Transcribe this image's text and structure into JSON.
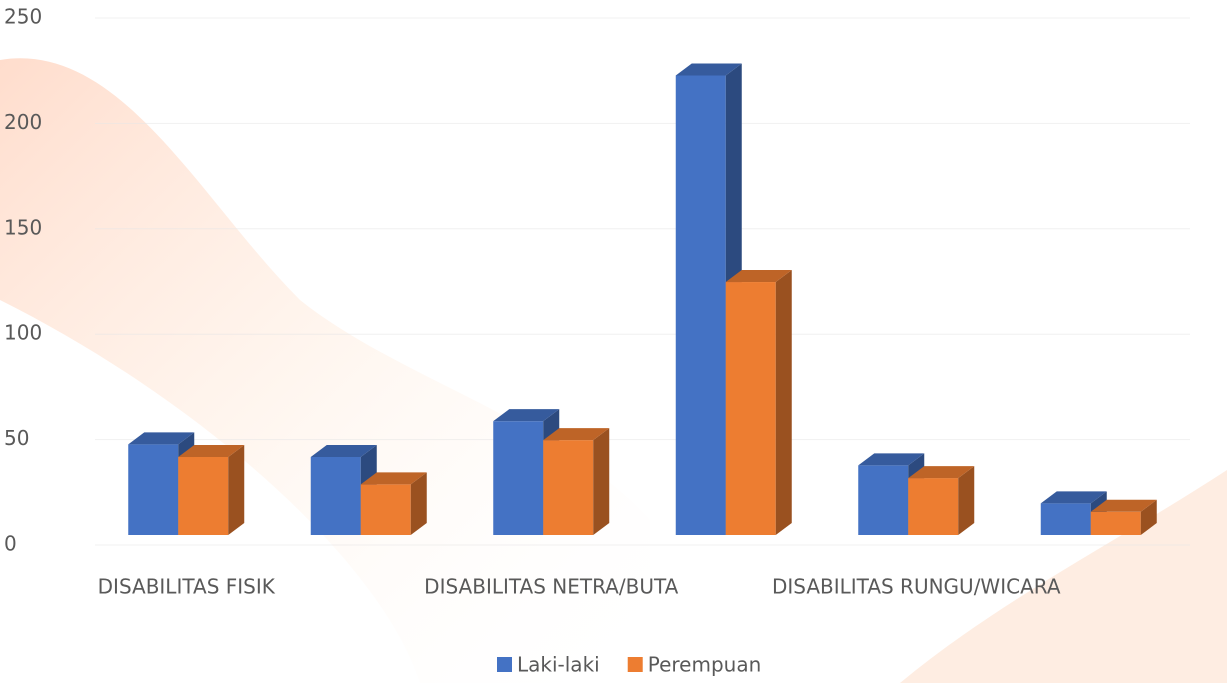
{
  "chart_data": {
    "type": "bar3d",
    "categories": [
      "DISABILITAS FISIK",
      null,
      "DISABILITAS NETRA/BUTA",
      null,
      "DISABILITAS RUNGU/WICARA",
      null
    ],
    "series": [
      {
        "name": "Laki-laki",
        "color": "#4472c4",
        "values": [
          43,
          37,
          54,
          218,
          33,
          15
        ]
      },
      {
        "name": "Perempuan",
        "color": "#ed7d31",
        "values": [
          37,
          24,
          45,
          120,
          27,
          11
        ]
      }
    ],
    "ylim": [
      0,
      250
    ],
    "yticks": [
      0,
      50,
      100,
      150,
      200,
      250
    ],
    "grid": true,
    "legend": "bottom"
  }
}
